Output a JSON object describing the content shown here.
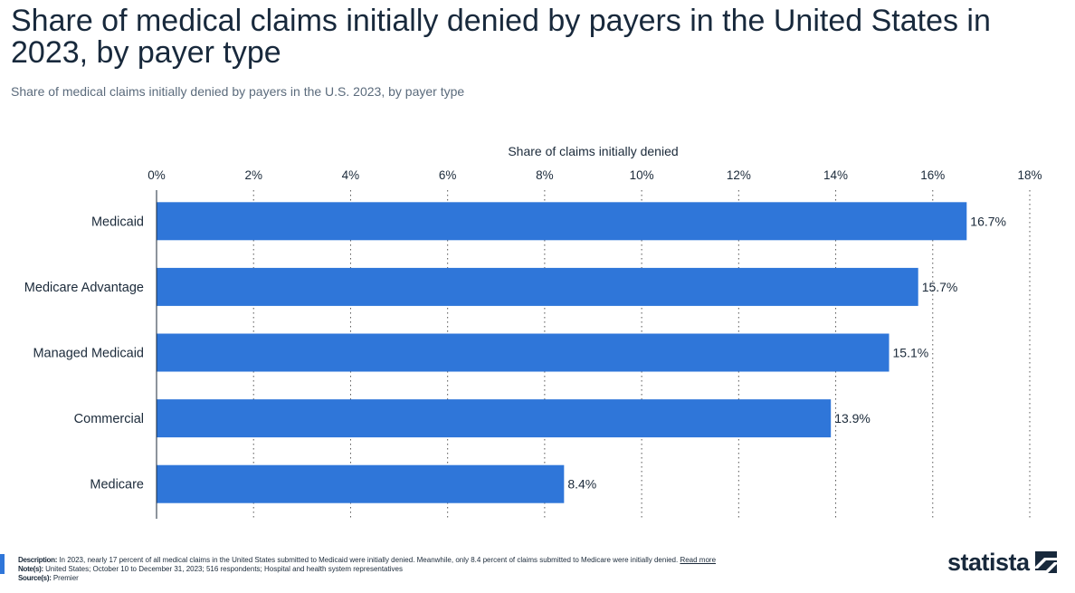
{
  "title": "Share of medical claims initially denied by payers in the United States in 2023, by payer type",
  "subtitle": "Share of medical claims initially denied by payers in the U.S. 2023, by payer type",
  "chart_data": {
    "type": "bar",
    "orientation": "horizontal",
    "categories": [
      "Medicaid",
      "Medicare Advantage",
      "Managed Medicaid",
      "Commercial",
      "Medicare"
    ],
    "values": [
      16.7,
      15.7,
      15.1,
      13.9,
      8.4
    ],
    "value_labels": [
      "16.7%",
      "15.7%",
      "15.1%",
      "13.9%",
      "8.4%"
    ],
    "xlabel": "Share of claims initially denied",
    "xlim": [
      0,
      18
    ],
    "ticks": [
      0,
      2,
      4,
      6,
      8,
      10,
      12,
      14,
      16,
      18
    ],
    "tick_labels": [
      "0%",
      "2%",
      "4%",
      "6%",
      "8%",
      "10%",
      "12%",
      "14%",
      "16%",
      "18%"
    ],
    "axis_position": "top",
    "grid": true,
    "bar_color": "#2f76d9"
  },
  "footer": {
    "description_label": "Description:",
    "description": "In 2023, nearly 17 percent of all medical claims in the United States submitted to Medicaid were initially denied. Meanwhile, only 8.4 percent of claims submitted to Medicare were initially denied.",
    "read_more": "Read more",
    "notes_label": "Note(s):",
    "notes": "United States;  October 10 to December 31, 2023; 516 respondents; Hospital and health system representatives",
    "source_label": "Source(s):",
    "source": "Premier"
  },
  "brand": {
    "name": "statista",
    "icon": "statista-logo-icon"
  }
}
